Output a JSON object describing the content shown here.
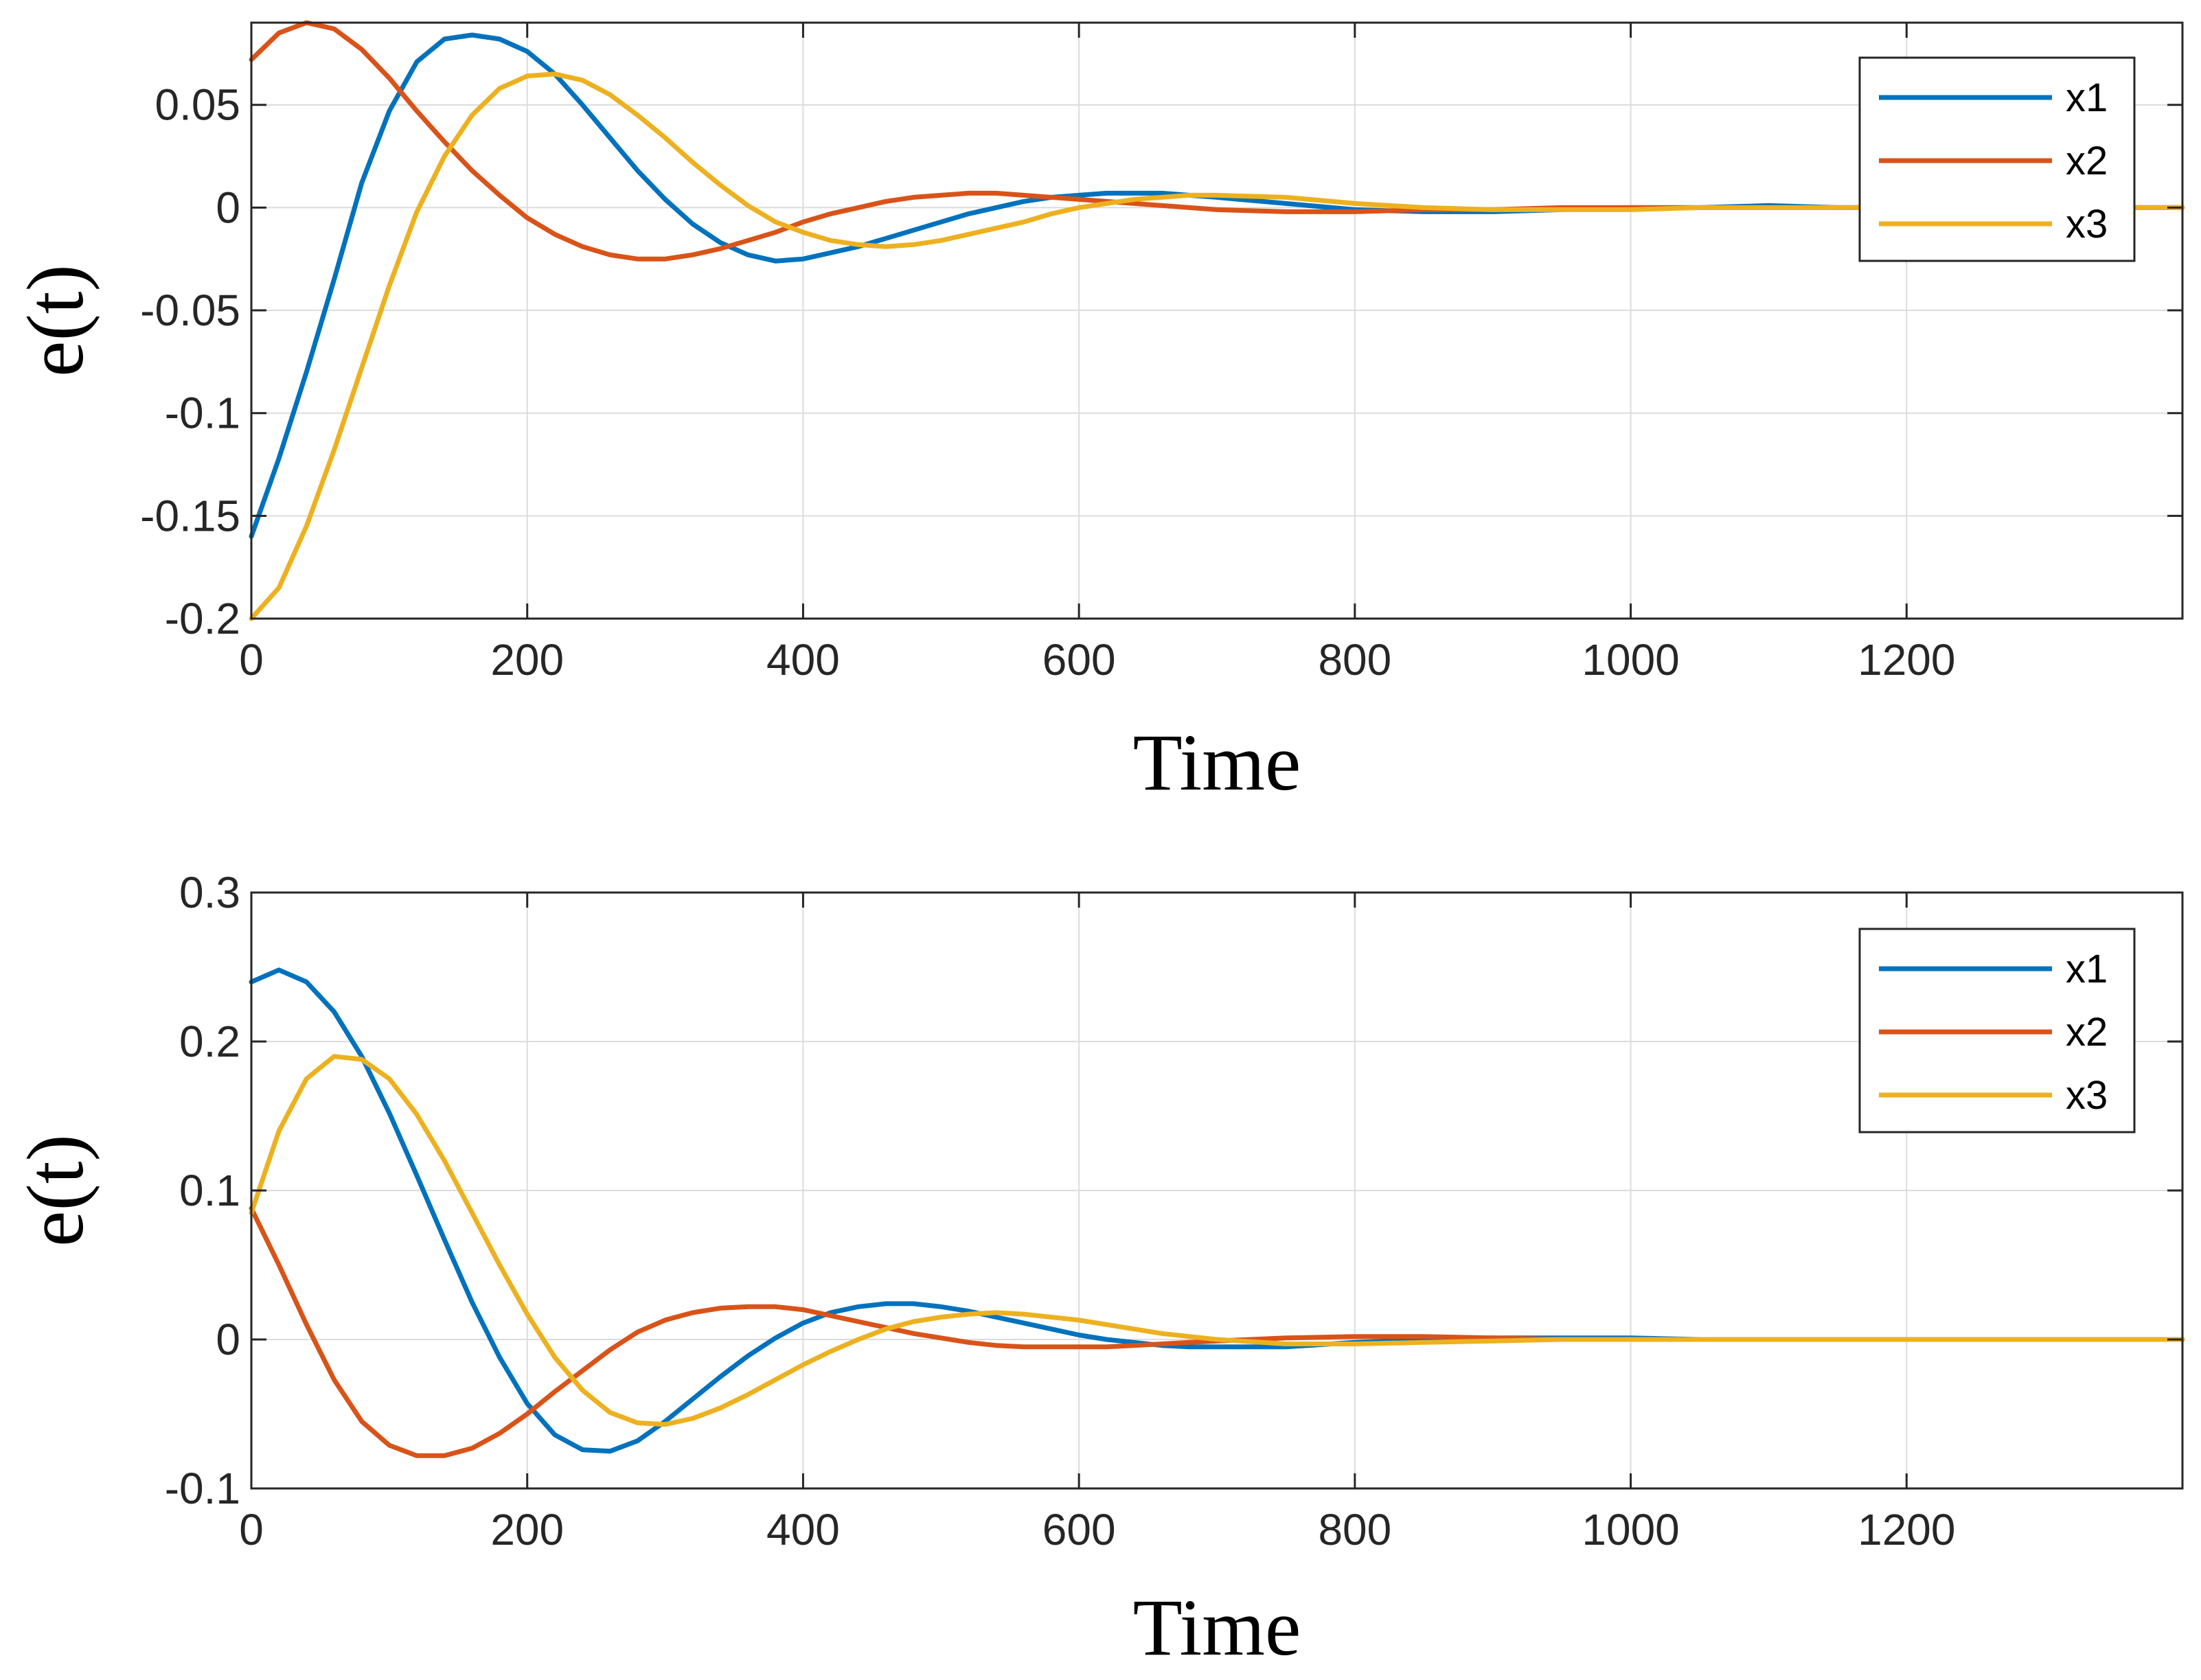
{
  "chart_data": [
    {
      "type": "line",
      "xlabel": "Time",
      "ylabel": "e(t)",
      "xlim": [
        0,
        1400
      ],
      "ylim": [
        -0.2,
        0.09
      ],
      "xticks": [
        0,
        200,
        400,
        600,
        800,
        1000,
        1200
      ],
      "xtick_labels": [
        "0",
        "200",
        "400",
        "600",
        "800",
        "1000",
        "1200"
      ],
      "yticks": [
        -0.2,
        -0.15,
        -0.1,
        -0.05,
        0,
        0.05
      ],
      "ytick_labels": [
        "-0.2",
        "-0.15",
        "-0.1",
        "-0.05",
        "0",
        "0.05"
      ],
      "grid": true,
      "legend": "top-right",
      "series": [
        {
          "name": "x1",
          "color": "#0072BD",
          "x": [
            0,
            20,
            40,
            60,
            80,
            100,
            120,
            140,
            160,
            180,
            200,
            220,
            240,
            260,
            280,
            300,
            320,
            340,
            360,
            380,
            400,
            420,
            440,
            460,
            480,
            500,
            520,
            540,
            560,
            580,
            600,
            620,
            640,
            660,
            680,
            700,
            750,
            800,
            850,
            900,
            950,
            1000,
            1050,
            1100,
            1150,
            1200,
            1300,
            1400
          ],
          "y": [
            -0.16,
            -0.122,
            -0.08,
            -0.035,
            0.012,
            0.047,
            0.071,
            0.082,
            0.084,
            0.082,
            0.076,
            0.065,
            0.05,
            0.034,
            0.018,
            0.004,
            -0.008,
            -0.017,
            -0.023,
            -0.026,
            -0.025,
            -0.022,
            -0.019,
            -0.015,
            -0.011,
            -0.007,
            -0.003,
            0.0,
            0.003,
            0.005,
            0.006,
            0.007,
            0.007,
            0.007,
            0.006,
            0.005,
            0.002,
            -0.001,
            -0.002,
            -0.002,
            -0.001,
            0.0,
            0.0,
            0.001,
            0.0,
            0.0,
            0.0,
            0.0
          ]
        },
        {
          "name": "x2",
          "color": "#D95319",
          "x": [
            0,
            20,
            40,
            60,
            80,
            100,
            120,
            140,
            160,
            180,
            200,
            220,
            240,
            260,
            280,
            300,
            320,
            340,
            360,
            380,
            400,
            420,
            440,
            460,
            480,
            500,
            520,
            540,
            560,
            580,
            600,
            620,
            640,
            660,
            680,
            700,
            750,
            800,
            850,
            900,
            950,
            1000,
            1050,
            1100,
            1150,
            1200,
            1300,
            1400
          ],
          "y": [
            0.072,
            0.085,
            0.09,
            0.087,
            0.077,
            0.063,
            0.047,
            0.032,
            0.018,
            0.006,
            -0.005,
            -0.013,
            -0.019,
            -0.023,
            -0.025,
            -0.025,
            -0.023,
            -0.02,
            -0.016,
            -0.012,
            -0.007,
            -0.003,
            0.0,
            0.003,
            0.005,
            0.006,
            0.007,
            0.007,
            0.006,
            0.005,
            0.004,
            0.003,
            0.002,
            0.001,
            0.0,
            -0.001,
            -0.002,
            -0.002,
            -0.001,
            -0.001,
            0.0,
            0.0,
            0.0,
            0.0,
            0.0,
            0.0,
            0.0,
            0.0
          ]
        },
        {
          "name": "x3",
          "color": "#EDB120",
          "x": [
            0,
            20,
            40,
            60,
            80,
            100,
            120,
            140,
            160,
            180,
            200,
            220,
            240,
            260,
            280,
            300,
            320,
            340,
            360,
            380,
            400,
            420,
            440,
            460,
            480,
            500,
            520,
            540,
            560,
            580,
            600,
            620,
            640,
            660,
            680,
            700,
            750,
            800,
            850,
            900,
            950,
            1000,
            1050,
            1100,
            1150,
            1200,
            1300,
            1400
          ],
          "y": [
            -0.2,
            -0.185,
            -0.155,
            -0.118,
            -0.078,
            -0.038,
            -0.002,
            0.025,
            0.045,
            0.058,
            0.064,
            0.065,
            0.062,
            0.055,
            0.045,
            0.034,
            0.022,
            0.011,
            0.001,
            -0.007,
            -0.012,
            -0.016,
            -0.018,
            -0.019,
            -0.018,
            -0.016,
            -0.013,
            -0.01,
            -0.007,
            -0.003,
            0.0,
            0.002,
            0.004,
            0.005,
            0.006,
            0.006,
            0.005,
            0.002,
            0.0,
            -0.001,
            -0.001,
            -0.001,
            0.0,
            0.0,
            0.0,
            0.0,
            0.0,
            0.0
          ]
        }
      ]
    },
    {
      "type": "line",
      "xlabel": "Time",
      "ylabel": "e(t)",
      "xlim": [
        0,
        1400
      ],
      "ylim": [
        -0.1,
        0.3
      ],
      "xticks": [
        0,
        200,
        400,
        600,
        800,
        1000,
        1200
      ],
      "xtick_labels": [
        "0",
        "200",
        "400",
        "600",
        "800",
        "1000",
        "1200"
      ],
      "yticks": [
        -0.1,
        0,
        0.1,
        0.2,
        0.3
      ],
      "ytick_labels": [
        "-0.1",
        "0",
        "0.1",
        "0.2",
        "0.3"
      ],
      "grid": true,
      "legend": "top-right",
      "series": [
        {
          "name": "x1",
          "color": "#0072BD",
          "x": [
            0,
            20,
            40,
            60,
            80,
            100,
            120,
            140,
            160,
            180,
            200,
            220,
            240,
            260,
            280,
            300,
            320,
            340,
            360,
            380,
            400,
            420,
            440,
            460,
            480,
            500,
            520,
            540,
            560,
            580,
            600,
            620,
            640,
            660,
            680,
            700,
            750,
            800,
            850,
            900,
            950,
            1000,
            1050,
            1100,
            1150,
            1200,
            1300,
            1400
          ],
          "y": [
            0.24,
            0.248,
            0.24,
            0.22,
            0.19,
            0.152,
            0.11,
            0.067,
            0.025,
            -0.012,
            -0.043,
            -0.064,
            -0.074,
            -0.075,
            -0.068,
            -0.055,
            -0.04,
            -0.025,
            -0.011,
            0.001,
            0.011,
            0.018,
            0.022,
            0.024,
            0.024,
            0.022,
            0.019,
            0.015,
            0.011,
            0.007,
            0.003,
            0.0,
            -0.002,
            -0.004,
            -0.005,
            -0.005,
            -0.005,
            -0.002,
            0.0,
            0.001,
            0.001,
            0.001,
            0.0,
            0.0,
            0.0,
            0.0,
            0.0,
            0.0
          ]
        },
        {
          "name": "x2",
          "color": "#D95319",
          "x": [
            0,
            20,
            40,
            60,
            80,
            100,
            120,
            140,
            160,
            180,
            200,
            220,
            240,
            260,
            280,
            300,
            320,
            340,
            360,
            380,
            400,
            420,
            440,
            460,
            480,
            500,
            520,
            540,
            560,
            580,
            600,
            620,
            640,
            660,
            680,
            700,
            750,
            800,
            850,
            900,
            950,
            1000,
            1050,
            1100,
            1150,
            1200,
            1300,
            1400
          ],
          "y": [
            0.088,
            0.05,
            0.01,
            -0.027,
            -0.055,
            -0.071,
            -0.078,
            -0.078,
            -0.073,
            -0.063,
            -0.05,
            -0.035,
            -0.021,
            -0.007,
            0.005,
            0.013,
            0.018,
            0.021,
            0.022,
            0.022,
            0.02,
            0.016,
            0.012,
            0.008,
            0.004,
            0.001,
            -0.002,
            -0.004,
            -0.005,
            -0.005,
            -0.005,
            -0.005,
            -0.004,
            -0.003,
            -0.002,
            -0.001,
            0.001,
            0.002,
            0.002,
            0.001,
            0.0,
            0.0,
            0.0,
            0.0,
            0.0,
            0.0,
            0.0,
            0.0
          ]
        },
        {
          "name": "x3",
          "color": "#EDB120",
          "x": [
            0,
            20,
            40,
            60,
            80,
            100,
            120,
            140,
            160,
            180,
            200,
            220,
            240,
            260,
            280,
            300,
            320,
            340,
            360,
            380,
            400,
            420,
            440,
            460,
            480,
            500,
            520,
            540,
            560,
            580,
            600,
            620,
            640,
            660,
            680,
            700,
            750,
            800,
            850,
            900,
            950,
            1000,
            1050,
            1100,
            1150,
            1200,
            1300,
            1400
          ],
          "y": [
            0.085,
            0.14,
            0.175,
            0.19,
            0.188,
            0.175,
            0.151,
            0.12,
            0.085,
            0.05,
            0.017,
            -0.012,
            -0.034,
            -0.049,
            -0.056,
            -0.057,
            -0.053,
            -0.046,
            -0.037,
            -0.027,
            -0.017,
            -0.008,
            0.0,
            0.007,
            0.012,
            0.015,
            0.017,
            0.018,
            0.017,
            0.015,
            0.013,
            0.01,
            0.007,
            0.004,
            0.002,
            0.0,
            -0.003,
            -0.003,
            -0.002,
            -0.001,
            0.0,
            0.0,
            0.0,
            0.0,
            0.0,
            0.0,
            0.0,
            0.0
          ]
        }
      ]
    }
  ]
}
